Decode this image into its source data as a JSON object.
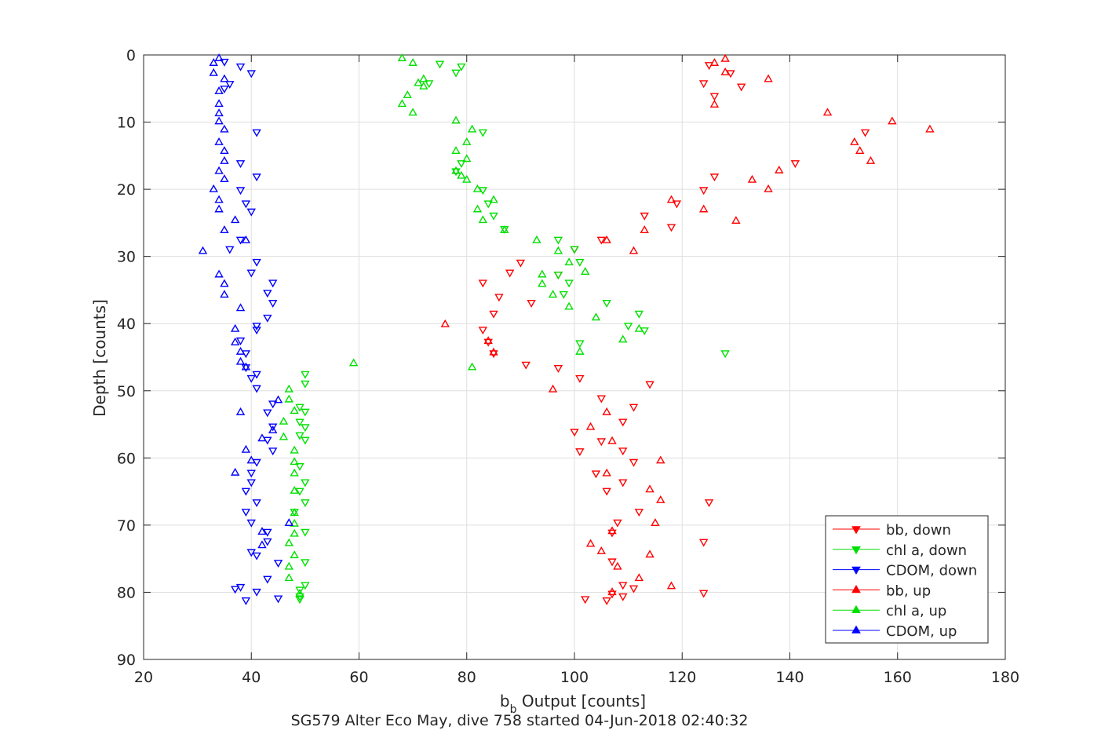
{
  "chart_data": {
    "type": "scatter",
    "title": "",
    "xlabel_main": "b",
    "xlabel_sub": "b",
    "xlabel_rest": " Output [counts]",
    "ylabel": "Depth [counts]",
    "caption": "SG579 Alter Eco May, dive 758 started 04-Jun-2018 02:40:32",
    "xlim": [
      20,
      180
    ],
    "ylim": [
      0,
      90
    ],
    "y_reversed": true,
    "grid": true,
    "legend_position": "lower-right",
    "x_ticks": [
      "20",
      "40",
      "60",
      "80",
      "100",
      "120",
      "140",
      "160",
      "180"
    ],
    "y_ticks": [
      "0",
      "10",
      "20",
      "30",
      "40",
      "50",
      "60",
      "70",
      "80",
      "90"
    ],
    "series": [
      {
        "name": "bb, down",
        "color": "#ff0000",
        "marker": "triangle-down",
        "points": [
          [
            125,
            1.5
          ],
          [
            129,
            2.7
          ],
          [
            124,
            4.2
          ],
          [
            126,
            6.1
          ],
          [
            131,
            4.7
          ],
          [
            154,
            11.5
          ],
          [
            141,
            16.1
          ],
          [
            126,
            18.1
          ],
          [
            124,
            20.1
          ],
          [
            119,
            22.1
          ],
          [
            113,
            23.9
          ],
          [
            118,
            25.6
          ],
          [
            105,
            27.5
          ],
          [
            100,
            28.9
          ],
          [
            90,
            30.9
          ],
          [
            88,
            32.4
          ],
          [
            83,
            33.9
          ],
          [
            86,
            36.0
          ],
          [
            92,
            36.9
          ],
          [
            97,
            32.7
          ],
          [
            85,
            38.5
          ],
          [
            83,
            40.9
          ],
          [
            84,
            42.7
          ],
          [
            85,
            44.4
          ],
          [
            91,
            46.1
          ],
          [
            97,
            46.6
          ],
          [
            101,
            48.1
          ],
          [
            114,
            49.0
          ],
          [
            105,
            51.1
          ],
          [
            111,
            52.4
          ],
          [
            109,
            54.6
          ],
          [
            105,
            57.5
          ],
          [
            100,
            56.1
          ],
          [
            101,
            59.0
          ],
          [
            109,
            58.9
          ],
          [
            111,
            60.6
          ],
          [
            104,
            62.3
          ],
          [
            109,
            63.6
          ],
          [
            106,
            64.9
          ],
          [
            112,
            68.0
          ],
          [
            108,
            69.6
          ],
          [
            107,
            71.1
          ],
          [
            124,
            72.5
          ],
          [
            107,
            75.4
          ],
          [
            109,
            78.9
          ],
          [
            111,
            79.4
          ],
          [
            107,
            80.2
          ],
          [
            109,
            80.6
          ],
          [
            102,
            81.0
          ],
          [
            106,
            81.2
          ],
          [
            124,
            80.1
          ],
          [
            125,
            66.6
          ]
        ]
      },
      {
        "name": "chl a, down",
        "color": "#00e000",
        "marker": "triangle-down",
        "points": [
          [
            75,
            1.3
          ],
          [
            79,
            1.7
          ],
          [
            78,
            2.6
          ],
          [
            73,
            4.2
          ],
          [
            83,
            11.5
          ],
          [
            79,
            16.1
          ],
          [
            78,
            17.3
          ],
          [
            83,
            20.1
          ],
          [
            84,
            22.1
          ],
          [
            85,
            23.9
          ],
          [
            87,
            25.9
          ],
          [
            97,
            27.5
          ],
          [
            100,
            28.9
          ],
          [
            97,
            32.7
          ],
          [
            101,
            30.8
          ],
          [
            99,
            33.9
          ],
          [
            98,
            35.6
          ],
          [
            106,
            36.9
          ],
          [
            112,
            38.5
          ],
          [
            113,
            41.0
          ],
          [
            110,
            40.3
          ],
          [
            101,
            42.9
          ],
          [
            128,
            44.4
          ],
          [
            50,
            47.5
          ],
          [
            50,
            48.9
          ],
          [
            49,
            52.4
          ],
          [
            50,
            53.1
          ],
          [
            49,
            54.6
          ],
          [
            50,
            55.4
          ],
          [
            49,
            56.6
          ],
          [
            50,
            57.3
          ],
          [
            49,
            61.2
          ],
          [
            50,
            63.6
          ],
          [
            49,
            64.9
          ],
          [
            50,
            66.6
          ],
          [
            48,
            68.0
          ],
          [
            50,
            71.0
          ],
          [
            50,
            75.5
          ],
          [
            50,
            78.9
          ],
          [
            49,
            79.6
          ],
          [
            49,
            80.6
          ],
          [
            49,
            81.0
          ]
        ]
      },
      {
        "name": "CDOM, down",
        "color": "#0000ff",
        "marker": "triangle-down",
        "points": [
          [
            35,
            1.0
          ],
          [
            38,
            1.7
          ],
          [
            40,
            2.7
          ],
          [
            36,
            4.3
          ],
          [
            35,
            5.0
          ],
          [
            41,
            11.5
          ],
          [
            38,
            16.1
          ],
          [
            41,
            18.1
          ],
          [
            38,
            20.1
          ],
          [
            39,
            22.1
          ],
          [
            40,
            23.3
          ],
          [
            38,
            27.5
          ],
          [
            36,
            28.9
          ],
          [
            41,
            30.8
          ],
          [
            40,
            32.4
          ],
          [
            44,
            33.9
          ],
          [
            43,
            35.4
          ],
          [
            44,
            36.9
          ],
          [
            43,
            39.1
          ],
          [
            41,
            40.3
          ],
          [
            41,
            40.9
          ],
          [
            38,
            42.5
          ],
          [
            39,
            44.4
          ],
          [
            39,
            46.5
          ],
          [
            41,
            47.5
          ],
          [
            40,
            48.1
          ],
          [
            41,
            49.6
          ],
          [
            44,
            51.9
          ],
          [
            43,
            53.2
          ],
          [
            44,
            55.3
          ],
          [
            43,
            57.3
          ],
          [
            44,
            58.9
          ],
          [
            41,
            60.6
          ],
          [
            40,
            62.2
          ],
          [
            40,
            63.6
          ],
          [
            39,
            64.9
          ],
          [
            41,
            66.6
          ],
          [
            39,
            68.0
          ],
          [
            40,
            69.6
          ],
          [
            43,
            71.0
          ],
          [
            43,
            72.4
          ],
          [
            40,
            74.0
          ],
          [
            41,
            74.5
          ],
          [
            45,
            75.6
          ],
          [
            43,
            78.0
          ],
          [
            41,
            79.9
          ],
          [
            38,
            79.2
          ],
          [
            37,
            79.5
          ],
          [
            39,
            81.2
          ],
          [
            45,
            80.9
          ]
        ]
      },
      {
        "name": "bb, up",
        "color": "#ff0000",
        "marker": "triangle-up",
        "points": [
          [
            128,
            0.6
          ],
          [
            126,
            1.2
          ],
          [
            128,
            2.6
          ],
          [
            136,
            3.6
          ],
          [
            126,
            7.4
          ],
          [
            147,
            8.6
          ],
          [
            159,
            9.9
          ],
          [
            166,
            11.1
          ],
          [
            152,
            13.0
          ],
          [
            153,
            14.3
          ],
          [
            155,
            15.8
          ],
          [
            138,
            17.2
          ],
          [
            133,
            18.6
          ],
          [
            136,
            20.0
          ],
          [
            118,
            21.6
          ],
          [
            124,
            23.0
          ],
          [
            130,
            24.7
          ],
          [
            113,
            26.1
          ],
          [
            106,
            27.6
          ],
          [
            111,
            29.2
          ],
          [
            84,
            42.6
          ],
          [
            85,
            44.3
          ],
          [
            76,
            40.1
          ],
          [
            96,
            49.8
          ],
          [
            103,
            55.4
          ],
          [
            106,
            53.2
          ],
          [
            107,
            57.5
          ],
          [
            116,
            60.4
          ],
          [
            106,
            62.3
          ],
          [
            114,
            64.7
          ],
          [
            116,
            66.3
          ],
          [
            115,
            69.7
          ],
          [
            107,
            70.9
          ],
          [
            103,
            72.8
          ],
          [
            105,
            73.9
          ],
          [
            108,
            76.2
          ],
          [
            114,
            74.4
          ],
          [
            112,
            77.9
          ],
          [
            118,
            79.1
          ],
          [
            107,
            80.0
          ]
        ]
      },
      {
        "name": "chl a, up",
        "color": "#00e000",
        "marker": "triangle-up",
        "points": [
          [
            68,
            0.5
          ],
          [
            70,
            1.2
          ],
          [
            72,
            3.6
          ],
          [
            71,
            4.2
          ],
          [
            72,
            4.7
          ],
          [
            69,
            6.0
          ],
          [
            68,
            7.3
          ],
          [
            70,
            8.6
          ],
          [
            78,
            9.8
          ],
          [
            81,
            11.1
          ],
          [
            80,
            13.0
          ],
          [
            78,
            14.3
          ],
          [
            80,
            15.5
          ],
          [
            78,
            17.3
          ],
          [
            79,
            18.0
          ],
          [
            80,
            18.6
          ],
          [
            82,
            20.0
          ],
          [
            85,
            21.6
          ],
          [
            82,
            23.0
          ],
          [
            83,
            24.6
          ],
          [
            87,
            26.1
          ],
          [
            93,
            27.6
          ],
          [
            97,
            29.2
          ],
          [
            99,
            30.9
          ],
          [
            102,
            32.3
          ],
          [
            94,
            32.7
          ],
          [
            94,
            34.1
          ],
          [
            96,
            35.7
          ],
          [
            99,
            37.5
          ],
          [
            104,
            39.1
          ],
          [
            109,
            42.4
          ],
          [
            112,
            40.8
          ],
          [
            101,
            44.2
          ],
          [
            81,
            46.5
          ],
          [
            59,
            45.9
          ],
          [
            47,
            49.8
          ],
          [
            47,
            51.3
          ],
          [
            48,
            53.0
          ],
          [
            46,
            54.6
          ],
          [
            46,
            56.9
          ],
          [
            48,
            58.9
          ],
          [
            48,
            60.6
          ],
          [
            48,
            62.3
          ],
          [
            48,
            64.9
          ],
          [
            48,
            68.2
          ],
          [
            48,
            69.8
          ],
          [
            48,
            71.3
          ],
          [
            47,
            72.7
          ],
          [
            48,
            74.5
          ],
          [
            47,
            76.2
          ],
          [
            47,
            77.9
          ],
          [
            49,
            80.2
          ]
        ]
      },
      {
        "name": "CDOM, up",
        "color": "#0000ff",
        "marker": "triangle-up",
        "points": [
          [
            34,
            0.5
          ],
          [
            33,
            1.2
          ],
          [
            33,
            2.7
          ],
          [
            35,
            3.6
          ],
          [
            34,
            5.4
          ],
          [
            34,
            7.3
          ],
          [
            34,
            8.7
          ],
          [
            34,
            9.9
          ],
          [
            35,
            11.1
          ],
          [
            34,
            13.0
          ],
          [
            35,
            14.3
          ],
          [
            35,
            15.8
          ],
          [
            34,
            17.3
          ],
          [
            35,
            18.5
          ],
          [
            33,
            20.0
          ],
          [
            34,
            21.6
          ],
          [
            34,
            23.0
          ],
          [
            37,
            24.6
          ],
          [
            35,
            26.1
          ],
          [
            39,
            27.6
          ],
          [
            31,
            29.2
          ],
          [
            34,
            32.7
          ],
          [
            35,
            34.1
          ],
          [
            35,
            35.7
          ],
          [
            38,
            37.7
          ],
          [
            37,
            40.8
          ],
          [
            37,
            42.8
          ],
          [
            38,
            44.2
          ],
          [
            38,
            45.7
          ],
          [
            39,
            46.5
          ],
          [
            38,
            53.2
          ],
          [
            45,
            51.4
          ],
          [
            44,
            55.9
          ],
          [
            42,
            57.1
          ],
          [
            39,
            58.8
          ],
          [
            40,
            60.4
          ],
          [
            37,
            62.2
          ],
          [
            47,
            69.7
          ],
          [
            42,
            71.0
          ],
          [
            42,
            73.0
          ]
        ]
      }
    ]
  }
}
